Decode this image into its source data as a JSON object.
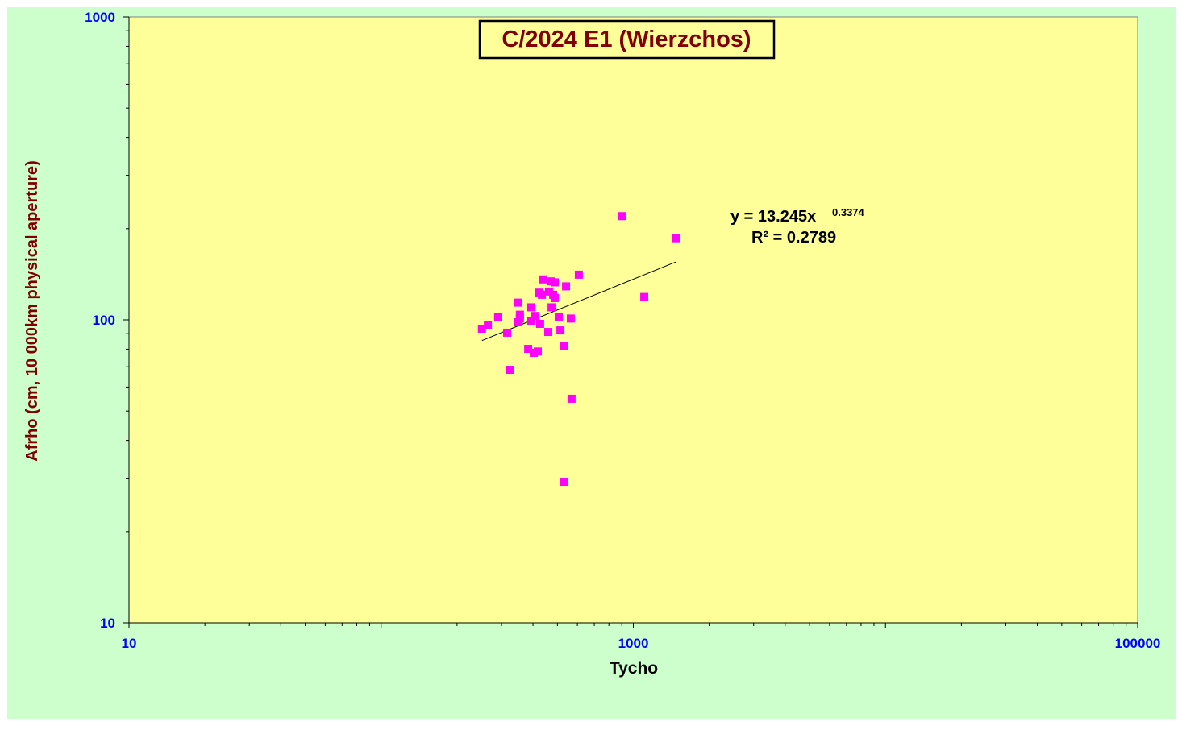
{
  "chart_data": {
    "type": "scatter",
    "title": "C/2024 E1 (Wierzchos)",
    "x_label": "Tycho",
    "y_label": "Afrho (cm, 10 000km physical  aperture)",
    "x": [
      251,
      265,
      291,
      316,
      325,
      350,
      355,
      355,
      348,
      383,
      394,
      394,
      403,
      409,
      418,
      421,
      427,
      434,
      440,
      460,
      463,
      470,
      474,
      481,
      488,
      488,
      506,
      514,
      529,
      529,
      541,
      565,
      569,
      608,
      899,
      1105,
      1472
    ],
    "values": [
      93.5,
      96.4,
      102,
      90.7,
      68.4,
      114,
      104,
      101,
      98.2,
      80.2,
      110,
      99.4,
      77.8,
      103,
      78.6,
      123,
      97,
      121,
      136,
      91.2,
      124,
      134,
      110,
      121,
      133,
      118,
      102.5,
      92.3,
      82.2,
      29.2,
      129,
      101,
      54.9,
      141,
      220,
      119,
      186
    ],
    "color": "#ff00ff",
    "xlim": [
      10,
      100000
    ],
    "ylim": [
      10,
      1000
    ],
    "xticks": [
      10,
      1000,
      100000
    ],
    "yticks": [
      10,
      100,
      1000
    ],
    "xscale": "log",
    "yscale": "log",
    "trendline": {
      "coefficient": 13.245,
      "exponent": 0.3374,
      "r_squared": 0.2789,
      "labels": [
        "y = 13.245x",
        "0.3374",
        "R² = 0.2789"
      ]
    }
  }
}
